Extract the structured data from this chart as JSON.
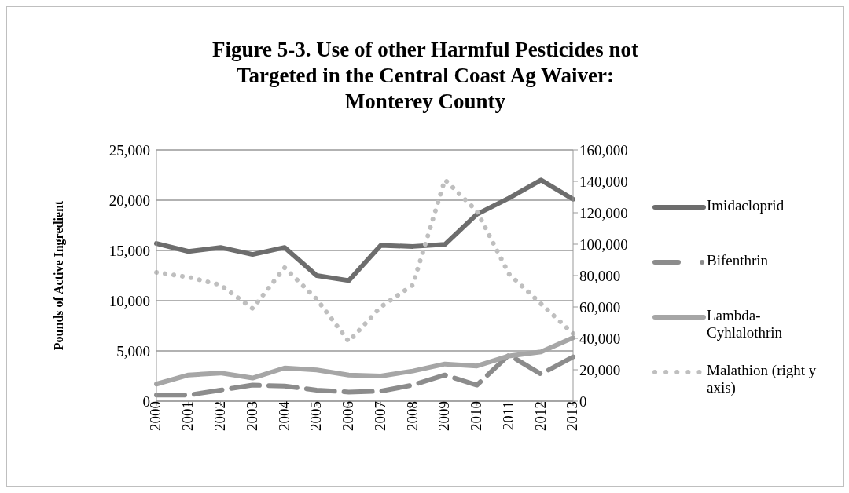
{
  "chart_data": {
    "type": "line",
    "title": "Figure 5-3. Use of other Harmful Pesticides not Targeted in the Central Coast Ag Waiver: Monterey County",
    "ylabel": "Pounds of Active Ingredient",
    "categories": [
      "2000",
      "2001",
      "2002",
      "2003",
      "2004",
      "2005",
      "2006",
      "2007",
      "2008",
      "2009",
      "2010",
      "2011",
      "2012",
      "2013"
    ],
    "series": [
      {
        "name": "Imidacloprid",
        "color": "#6d6d6d",
        "line_style": "solid",
        "values": [
          15700,
          14900,
          15300,
          14600,
          15300,
          12500,
          12000,
          15500,
          15400,
          15600,
          18600,
          20200,
          22000,
          20100
        ]
      },
      {
        "name": "Bifenthrin",
        "color": "#8c8c8c",
        "line_style": "dashed",
        "values": [
          600,
          600,
          1100,
          1600,
          1500,
          1100,
          900,
          1000,
          1600,
          2600,
          1600,
          4600,
          2700,
          4400
        ]
      },
      {
        "name": "Lambda-Cyhlalothrin",
        "color": "#a6a6a6",
        "line_style": "solid",
        "values": [
          1700,
          2600,
          2800,
          2300,
          3300,
          3100,
          2600,
          2500,
          3000,
          3700,
          3500,
          4500,
          4900,
          6300
        ]
      },
      {
        "name": "Malathion (right y axis)",
        "color": "#bfbfbf",
        "line_style": "dotted",
        "axis": "y2",
        "values": [
          82000,
          79000,
          74000,
          59000,
          85000,
          65000,
          38000,
          60000,
          74000,
          141000,
          121000,
          81000,
          62000,
          43000
        ]
      }
    ],
    "ylim": [
      0,
      25000
    ],
    "yticks": [
      0,
      {
        "value": 5000,
        "label": "5,000"
      },
      {
        "value": 10000,
        "label": "10,000"
      },
      {
        "value": 15000,
        "label": "15,000"
      },
      {
        "value": 20000,
        "label": "20,000"
      },
      {
        "value": 25000,
        "label": "25,000"
      }
    ],
    "y2lim": [
      0,
      160000
    ],
    "y2ticks": [
      0,
      {
        "value": 20000,
        "label": "20,000"
      },
      {
        "value": 40000,
        "label": "40,000"
      },
      {
        "value": 60000,
        "label": "60,000"
      },
      {
        "value": 80000,
        "label": "80,000"
      },
      {
        "value": 100000,
        "label": "100,000"
      },
      {
        "value": 120000,
        "label": "120,000"
      },
      {
        "value": 140000,
        "label": "140,000"
      },
      {
        "value": 160000,
        "label": "160,000"
      }
    ],
    "grid": "y",
    "legend": "right",
    "marker": "none"
  }
}
